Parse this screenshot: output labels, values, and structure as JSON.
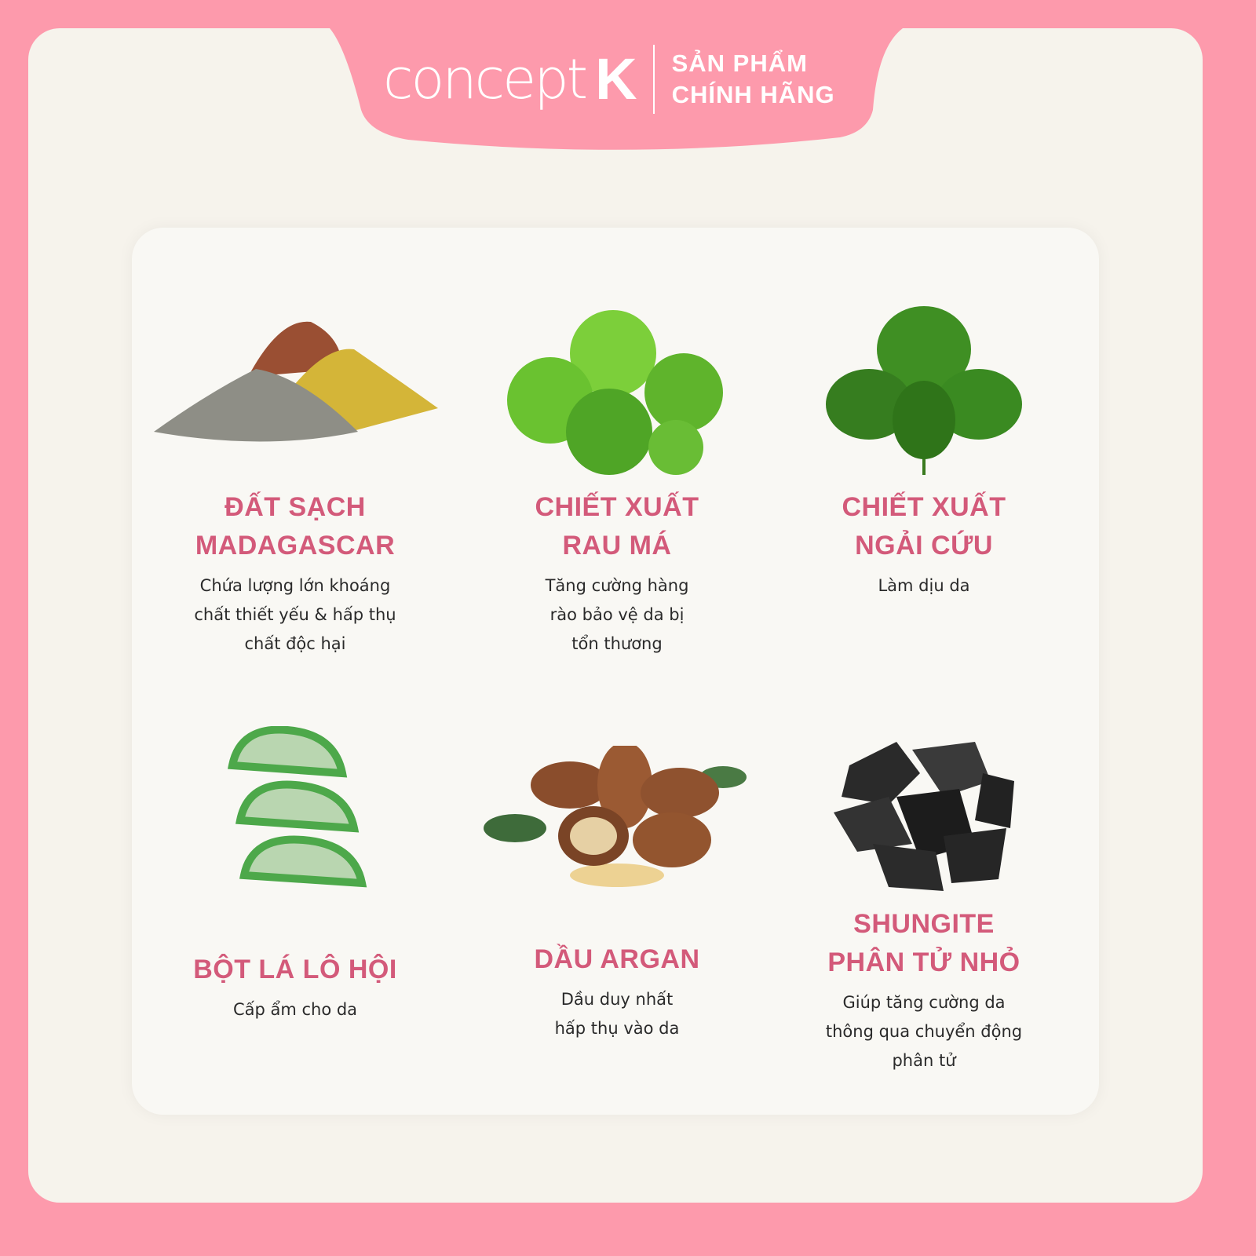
{
  "brand": {
    "name": "concept",
    "letter": "K",
    "tagline": [
      "SẢN PHẨM",
      "CHÍNH HÃNG"
    ]
  },
  "colors": {
    "border": "#fd9aac",
    "title": "#d35a7a",
    "background": "#f6f3ec",
    "card": "#f9f8f4"
  },
  "ingredients": [
    {
      "icon": "clay-powder-icon",
      "title": [
        "ĐẤT SẠCH",
        "MADAGASCAR"
      ],
      "desc": [
        "Chứa lượng lớn khoáng",
        "chất thiết yếu & hấp thụ",
        "chất độc hại"
      ]
    },
    {
      "icon": "centella-leaf-icon",
      "title": [
        "CHIẾT XUẤT",
        "RAU MÁ"
      ],
      "desc": [
        "Tăng cường hàng",
        "rào bảo vệ da bị",
        "tổn thương"
      ]
    },
    {
      "icon": "mugwort-leaf-icon",
      "title": [
        "CHIẾT XUẤT",
        "NGẢI CỨU"
      ],
      "desc": [
        "Làm dịu da"
      ]
    },
    {
      "icon": "aloe-slices-icon",
      "title": [
        "BỘT LÁ LÔ HỘI"
      ],
      "desc": [
        "Cấp ẩm cho da"
      ]
    },
    {
      "icon": "argan-nuts-icon",
      "title": [
        "DẦU ARGAN"
      ],
      "desc": [
        "Dầu duy nhất",
        "hấp thụ vào da"
      ]
    },
    {
      "icon": "shungite-stones-icon",
      "title": [
        "SHUNGITE",
        "PHÂN TỬ NHỎ"
      ],
      "desc": [
        "Giúp tăng cường da",
        "thông qua chuyển động",
        "phân tử"
      ]
    }
  ]
}
